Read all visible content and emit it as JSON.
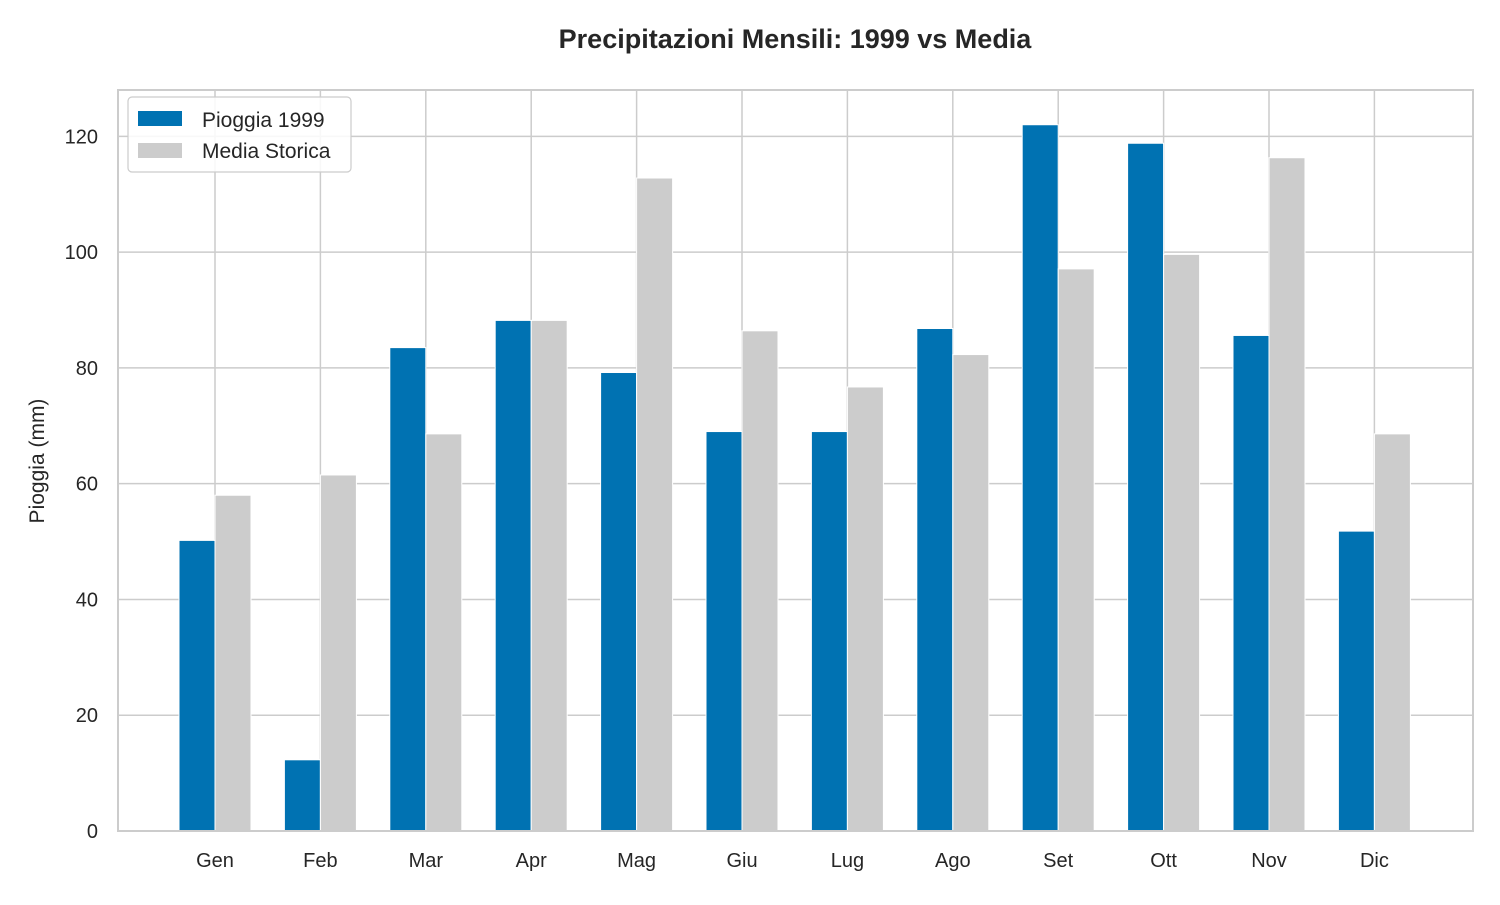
{
  "chart_data": {
    "type": "bar",
    "title": "Precipitazioni Mensili: 1999 vs Media",
    "xlabel": "",
    "ylabel": "Pioggia (mm)",
    "categories": [
      "Gen",
      "Feb",
      "Mar",
      "Apr",
      "Mag",
      "Giu",
      "Lug",
      "Ago",
      "Set",
      "Ott",
      "Nov",
      "Dic"
    ],
    "series": [
      {
        "name": "Pioggia 1999",
        "color": "#0072b2",
        "values": [
          50.2,
          12.3,
          83.5,
          88.2,
          79.2,
          69.0,
          69.0,
          86.8,
          122.0,
          118.8,
          85.6,
          51.8
        ]
      },
      {
        "name": "Media Storica",
        "color": "#cccccc",
        "values": [
          58.0,
          61.5,
          68.6,
          88.2,
          112.8,
          86.4,
          76.7,
          82.3,
          97.1,
          99.6,
          116.3,
          68.6
        ]
      }
    ],
    "ylim": [
      0,
      128
    ],
    "yticks": [
      0,
      20,
      40,
      60,
      80,
      100,
      120
    ],
    "grid": true,
    "legend_position": "top-left"
  }
}
